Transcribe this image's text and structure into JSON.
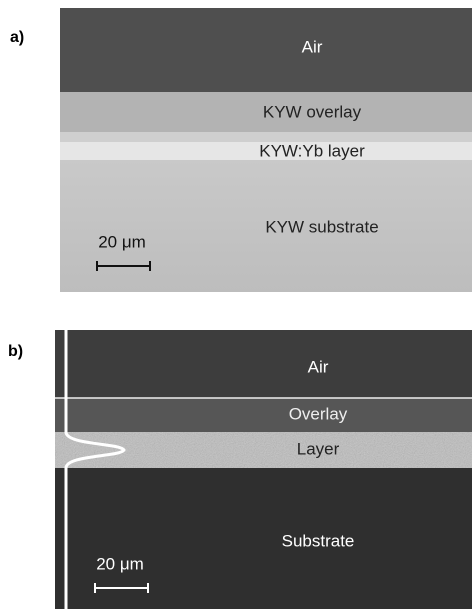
{
  "panels": [
    {
      "letter": "a)",
      "regions": [
        "Air",
        "KYW overlay",
        "KYW:Yb layer",
        "KYW substrate"
      ],
      "scale_bar": "20 μm"
    },
    {
      "letter": "b)",
      "regions": [
        "Air",
        "Overlay",
        "Layer",
        "Substrate"
      ],
      "scale_bar": "20 μm"
    }
  ]
}
